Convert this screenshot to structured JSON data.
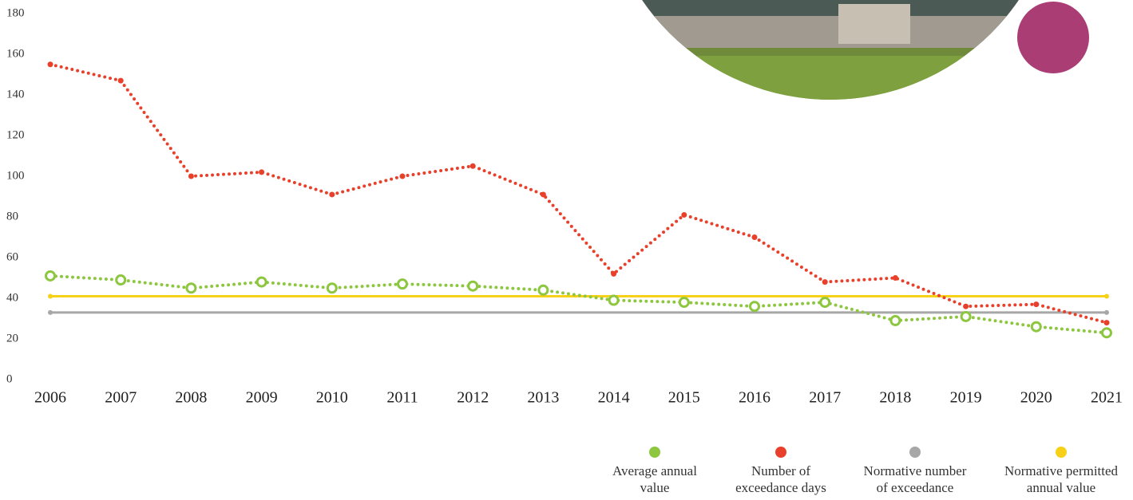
{
  "chart_data": {
    "type": "line",
    "categories": [
      "2006",
      "2007",
      "2008",
      "2009",
      "2010",
      "2011",
      "2012",
      "2013",
      "2014",
      "2015",
      "2016",
      "2017",
      "2018",
      "2019",
      "2020",
      "2021"
    ],
    "series": [
      {
        "name": "Average annual value",
        "color": "#8dc63f",
        "marker": "hollow",
        "values": [
          51,
          49,
          45,
          48,
          45,
          47,
          46,
          44,
          39,
          38,
          36,
          38,
          29,
          31,
          26,
          23
        ]
      },
      {
        "name": "Number of exceedance days",
        "color": "#e8402a",
        "marker": "dot",
        "values": [
          155,
          147,
          100,
          102,
          91,
          100,
          105,
          91,
          52,
          81,
          70,
          48,
          50,
          36,
          37,
          28
        ]
      },
      {
        "name": "Normative number of exceedance",
        "color": "#a7a7a7",
        "marker": "solid",
        "values": [
          33,
          33,
          33,
          33,
          33,
          33,
          33,
          33,
          33,
          33,
          33,
          33,
          33,
          33,
          33,
          33
        ]
      },
      {
        "name": "Normative permitted annual value",
        "color": "#f7d117",
        "marker": "solid",
        "values": [
          41,
          41,
          41,
          41,
          41,
          41,
          41,
          41,
          41,
          41,
          41,
          41,
          41,
          41,
          41,
          41
        ]
      }
    ],
    "ylim": [
      0,
      180
    ],
    "yticks": [
      0,
      20,
      40,
      60,
      80,
      100,
      120,
      140,
      160,
      180
    ],
    "grid": false
  }
}
